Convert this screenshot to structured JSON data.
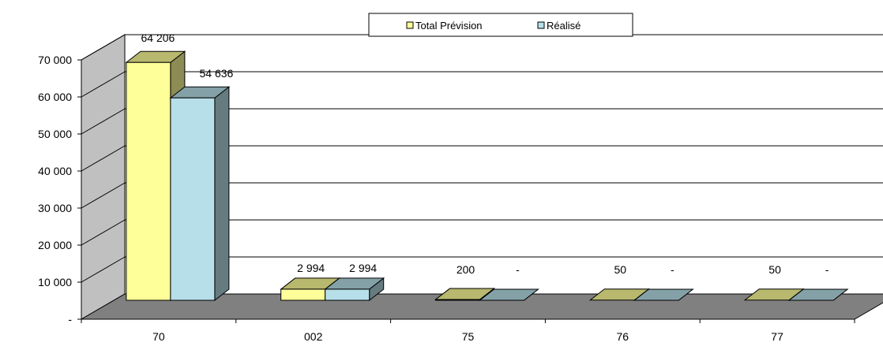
{
  "chart_data": {
    "type": "bar",
    "categories": [
      "70",
      "002",
      "75",
      "76",
      "77"
    ],
    "series": [
      {
        "name": "Total Prévision",
        "values": [
          64206,
          2994,
          200,
          50,
          50
        ],
        "labels": [
          "64 206",
          "2 994",
          "200",
          "50",
          "50"
        ],
        "color": "#ffff99"
      },
      {
        "name": "Réalisé",
        "values": [
          54636,
          2994,
          0,
          0,
          0
        ],
        "labels": [
          "54 636",
          "2 994",
          "-",
          "-",
          "-"
        ],
        "color": "#b7dfe9"
      }
    ],
    "yticks": [
      {
        "value": 0,
        "label": "-"
      },
      {
        "value": 10000,
        "label": "10 000"
      },
      {
        "value": 20000,
        "label": "20 000"
      },
      {
        "value": 30000,
        "label": "30 000"
      },
      {
        "value": 40000,
        "label": "40 000"
      },
      {
        "value": 50000,
        "label": "50 000"
      },
      {
        "value": 60000,
        "label": "60 000"
      },
      {
        "value": 70000,
        "label": "70 000"
      }
    ],
    "ylim": [
      0,
      70000
    ],
    "grid": true,
    "three_d": true,
    "legend_position": "top-center",
    "colors": {
      "wall": "#ffffff",
      "side_wall": "#c0c0c0",
      "floor": "#808080",
      "gridline": "#000000"
    }
  }
}
